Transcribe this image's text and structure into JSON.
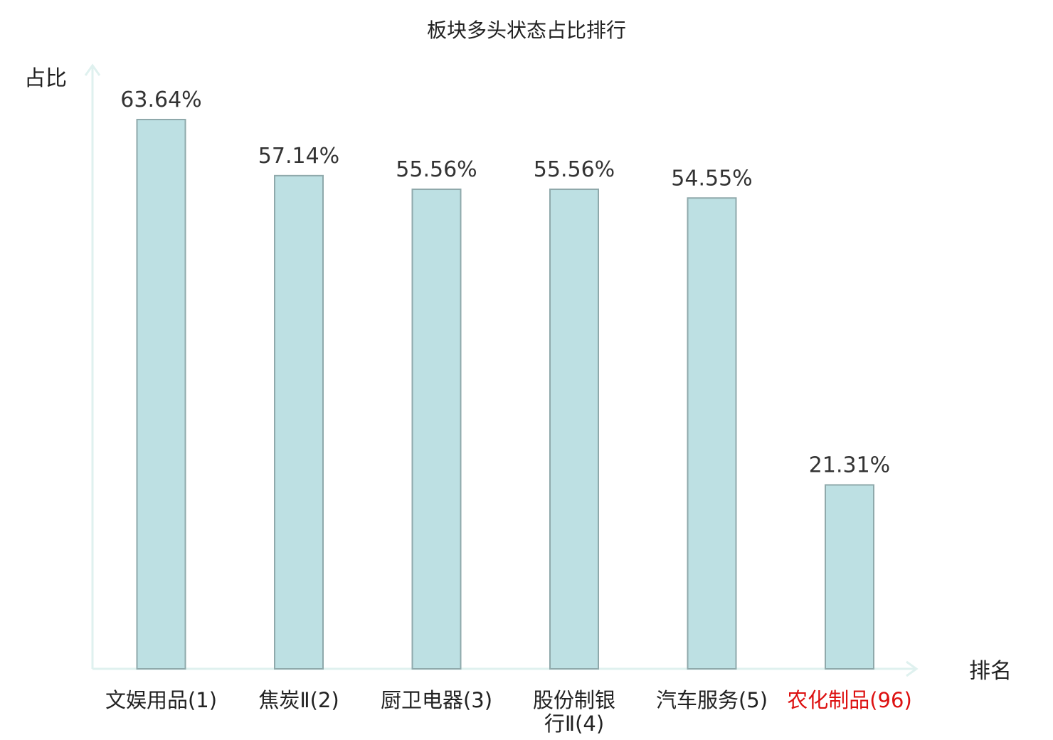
{
  "chart_data": {
    "type": "bar",
    "title": "板块多头状态占比排行",
    "xlabel": "排名",
    "ylabel": "占比",
    "categories": [
      "文娱用品(1)",
      "焦炭Ⅱ(2)",
      "厨卫电器(3)",
      "股份制银行Ⅱ(4)",
      "汽车服务(5)",
      "农化制品(96)"
    ],
    "category_lines": [
      [
        "文娱用品(1)"
      ],
      [
        "焦炭Ⅱ(2)"
      ],
      [
        "厨卫电器(3)"
      ],
      [
        "股份制银",
        "行Ⅱ(4)"
      ],
      [
        "汽车服务(5)"
      ],
      [
        "农化制品(96)"
      ]
    ],
    "values": [
      63.64,
      57.14,
      55.56,
      55.56,
      54.55,
      21.31
    ],
    "value_labels": [
      "63.64%",
      "57.14%",
      "55.56%",
      "55.56%",
      "54.55%",
      "21.31%"
    ],
    "highlight_index": 5,
    "ylim": [
      0,
      63.64
    ],
    "grid": false,
    "legend": "none",
    "colors": {
      "bar_fill": "#bde0e3",
      "bar_stroke": "#8fa9ab",
      "axis": "#dff1ef",
      "highlight_text": "#dd1111",
      "text": "#222222"
    }
  }
}
